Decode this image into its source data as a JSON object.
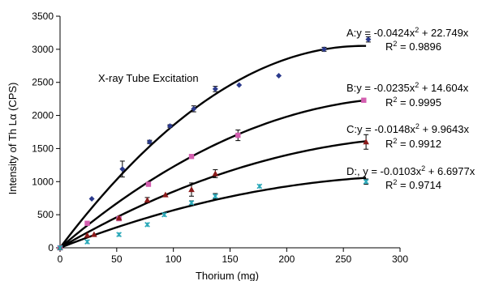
{
  "chart_data": {
    "type": "scatter",
    "title": "",
    "annotation": "X-ray Tube Excitation",
    "xlabel": "Thorium (mg)",
    "ylabel": "Intensity of Th Lα (CPS)",
    "xlim": [
      0,
      300
    ],
    "ylim": [
      0,
      3500
    ],
    "xticks": [
      "0",
      "50",
      "100",
      "150",
      "200",
      "250",
      "300"
    ],
    "yticks": [
      "0",
      "500",
      "1000",
      "1500",
      "2000",
      "2500",
      "3000",
      "3500"
    ],
    "grid": false,
    "series": [
      {
        "name": "A",
        "marker": "diamond",
        "color": "#2B3A8C",
        "fit": {
          "a": -0.0424,
          "b": 22.749,
          "x_end": 270
        },
        "equation": "A:y = -0.0424x² + 22.749x",
        "r2": "R² = 0.9896",
        "points": [
          {
            "x": 0,
            "y": 0,
            "err": 0
          },
          {
            "x": 28,
            "y": 740,
            "err": 0
          },
          {
            "x": 55,
            "y": 1190,
            "err": 120
          },
          {
            "x": 79,
            "y": 1600,
            "err": 25
          },
          {
            "x": 97,
            "y": 1840,
            "err": 20
          },
          {
            "x": 118,
            "y": 2100,
            "err": 45
          },
          {
            "x": 137,
            "y": 2400,
            "err": 40
          },
          {
            "x": 158,
            "y": 2460,
            "err": 0
          },
          {
            "x": 193,
            "y": 2600,
            "err": 0
          },
          {
            "x": 233,
            "y": 3000,
            "err": 30
          },
          {
            "x": 272,
            "y": 3150,
            "err": 40
          }
        ]
      },
      {
        "name": "B",
        "marker": "square",
        "color": "#D45FB0",
        "fit": {
          "a": -0.0235,
          "b": 14.604,
          "x_end": 270
        },
        "equation": "B:y = -0.0235x² + 14.604x",
        "r2": "R² = 0.9995",
        "points": [
          {
            "x": 0,
            "y": 0,
            "err": 0
          },
          {
            "x": 24,
            "y": 370,
            "err": 0
          },
          {
            "x": 52,
            "y": 440,
            "err": 0
          },
          {
            "x": 78,
            "y": 960,
            "err": 0
          },
          {
            "x": 116,
            "y": 1380,
            "err": 0
          },
          {
            "x": 157,
            "y": 1700,
            "err": 80
          },
          {
            "x": 268,
            "y": 2230,
            "err": 0
          }
        ]
      },
      {
        "name": "C",
        "marker": "triangle",
        "color": "#8B1A1A",
        "fit": {
          "a": -0.0148,
          "b": 9.9643,
          "x_end": 270
        },
        "equation": "C:y = -0.0148x² + 9.9643x",
        "r2": "R² = 0.9912",
        "points": [
          {
            "x": 0,
            "y": 0,
            "err": 0
          },
          {
            "x": 24,
            "y": 190,
            "err": 0
          },
          {
            "x": 30,
            "y": 200,
            "err": 0
          },
          {
            "x": 52,
            "y": 450,
            "err": 0
          },
          {
            "x": 77,
            "y": 720,
            "err": 40
          },
          {
            "x": 93,
            "y": 800,
            "err": 0
          },
          {
            "x": 116,
            "y": 880,
            "err": 100
          },
          {
            "x": 137,
            "y": 1120,
            "err": 60
          },
          {
            "x": 270,
            "y": 1600,
            "err": 110
          }
        ]
      },
      {
        "name": "D",
        "marker": "star",
        "color": "#2AA8B8",
        "fit": {
          "a": -0.0103,
          "b": 6.6977,
          "x_end": 270
        },
        "equation": "D:, y = -0.0103x² + 6.6977x",
        "r2": "R² = 0.9714",
        "points": [
          {
            "x": 0,
            "y": 0,
            "err": 0
          },
          {
            "x": 24,
            "y": 90,
            "err": 0
          },
          {
            "x": 52,
            "y": 200,
            "err": 0
          },
          {
            "x": 77,
            "y": 350,
            "err": 0
          },
          {
            "x": 92,
            "y": 500,
            "err": 0
          },
          {
            "x": 116,
            "y": 680,
            "err": 30
          },
          {
            "x": 137,
            "y": 780,
            "err": 40
          },
          {
            "x": 176,
            "y": 930,
            "err": 0
          },
          {
            "x": 270,
            "y": 1000,
            "err": 40
          }
        ]
      }
    ]
  }
}
